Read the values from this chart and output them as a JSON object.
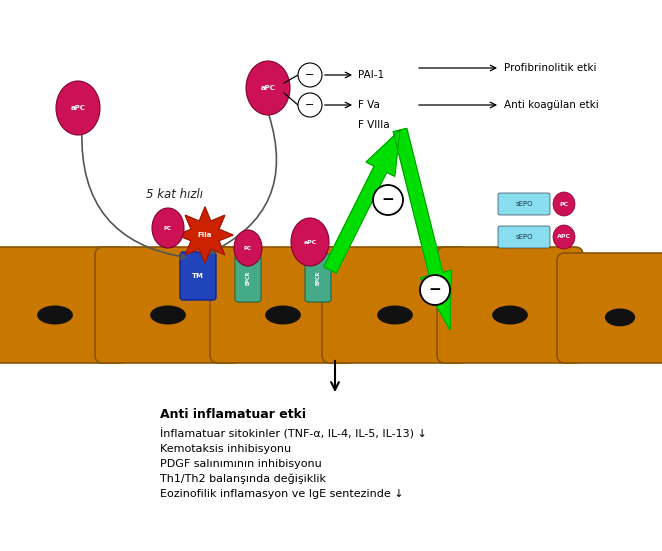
{
  "bg_color": "#ffffff",
  "fig_width": 6.62,
  "fig_height": 5.51,
  "dpi": 100,
  "cell_color": "#c87800",
  "cell_color2": "#a06000",
  "cell_dark": "#8b5500",
  "nucleus_color": "#111111",
  "apc_color": "#cc1155",
  "pc_color": "#cc1155",
  "sepo_color": "#88ddee",
  "tm_color": "#2244bb",
  "epcr_color": "#44aa88",
  "green_color": "#00dd00",
  "text_color": "#000000",
  "top_texts": {
    "PAI1": "PAI-1",
    "FVa": "F Va",
    "FVIIIa": "F VIIIa",
    "profibrin": "Profibrinolitik etki",
    "antikoag": "Anti koagülan etki"
  },
  "bottom_title": "Anti inflamatuar etki",
  "bottom_lines": [
    "İnflamatuar sitokinler (TNF-α, IL-4, IL-5, IL-13) ↓",
    "Kemotaksis inhibisyonu",
    "PDGF salınımının inhibisyonu",
    "Th1/Th2 balanşında değişiklik",
    "Eozinofilik inflamasyon ve IgE sentezinde ↓"
  ],
  "label_5kat": "5 kat hızlı"
}
